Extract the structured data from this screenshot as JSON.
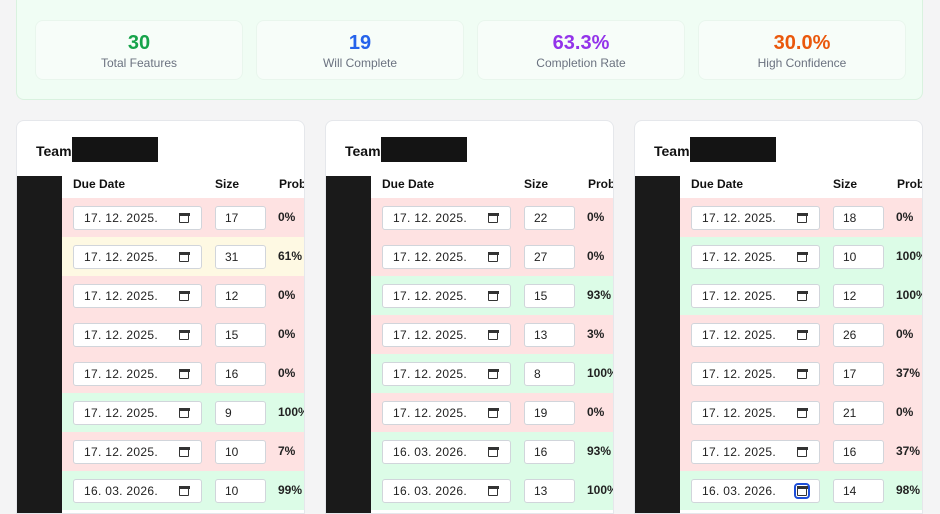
{
  "summary": {
    "stats": [
      {
        "value": "30",
        "label": "Total Features",
        "color": "#16a34a"
      },
      {
        "value": "19",
        "label": "Will Complete",
        "color": "#2563eb"
      },
      {
        "value": "63.3%",
        "label": "Completion Rate",
        "color": "#9333ea"
      },
      {
        "value": "30.0%",
        "label": "High Confidence",
        "color": "#ea580c"
      }
    ]
  },
  "columns": {
    "due_date": "Due Date",
    "size": "Size",
    "prob": "Prob"
  },
  "teams": [
    {
      "title": "Team",
      "rows": [
        {
          "date": "17. 12. 2025.",
          "size": "17",
          "prob": "0%",
          "status": "red"
        },
        {
          "date": "17. 12. 2025.",
          "size": "31",
          "prob": "61%",
          "status": "yellow"
        },
        {
          "date": "17. 12. 2025.",
          "size": "12",
          "prob": "0%",
          "status": "red"
        },
        {
          "date": "17. 12. 2025.",
          "size": "15",
          "prob": "0%",
          "status": "red"
        },
        {
          "date": "17. 12. 2025.",
          "size": "16",
          "prob": "0%",
          "status": "red"
        },
        {
          "date": "17. 12. 2025.",
          "size": "9",
          "prob": "100%",
          "status": "green"
        },
        {
          "date": "17. 12. 2025.",
          "size": "10",
          "prob": "7%",
          "status": "red"
        },
        {
          "date": "16. 03. 2026.",
          "size": "10",
          "prob": "99%",
          "status": "green"
        }
      ]
    },
    {
      "title": "Team",
      "rows": [
        {
          "date": "17. 12. 2025.",
          "size": "22",
          "prob": "0%",
          "status": "red"
        },
        {
          "date": "17. 12. 2025.",
          "size": "27",
          "prob": "0%",
          "status": "red"
        },
        {
          "date": "17. 12. 2025.",
          "size": "15",
          "prob": "93%",
          "status": "green"
        },
        {
          "date": "17. 12. 2025.",
          "size": "13",
          "prob": "3%",
          "status": "red"
        },
        {
          "date": "17. 12. 2025.",
          "size": "8",
          "prob": "100%",
          "status": "green"
        },
        {
          "date": "17. 12. 2025.",
          "size": "19",
          "prob": "0%",
          "status": "red"
        },
        {
          "date": "16. 03. 2026.",
          "size": "16",
          "prob": "93%",
          "status": "green"
        },
        {
          "date": "16. 03. 2026.",
          "size": "13",
          "prob": "100%",
          "status": "green"
        }
      ]
    },
    {
      "title": "Team",
      "rows": [
        {
          "date": "17. 12. 2025.",
          "size": "18",
          "prob": "0%",
          "status": "red"
        },
        {
          "date": "17. 12. 2025.",
          "size": "10",
          "prob": "100%",
          "status": "green"
        },
        {
          "date": "17. 12. 2025.",
          "size": "12",
          "prob": "100%",
          "status": "green"
        },
        {
          "date": "17. 12. 2025.",
          "size": "26",
          "prob": "0%",
          "status": "red"
        },
        {
          "date": "17. 12. 2025.",
          "size": "17",
          "prob": "37%",
          "status": "red"
        },
        {
          "date": "17. 12. 2025.",
          "size": "21",
          "prob": "0%",
          "status": "red"
        },
        {
          "date": "17. 12. 2025.",
          "size": "16",
          "prob": "37%",
          "status": "red"
        },
        {
          "date": "16. 03. 2026.",
          "size": "14",
          "prob": "98%",
          "status": "green",
          "focused": true
        }
      ]
    }
  ]
}
